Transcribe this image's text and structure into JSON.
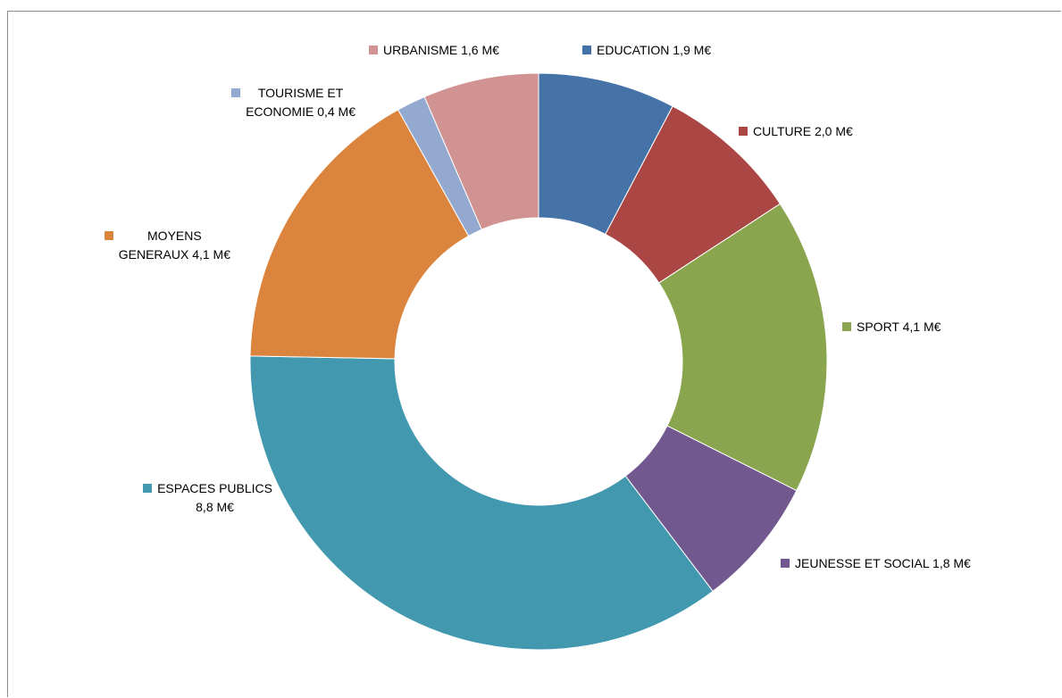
{
  "chart_data": {
    "type": "pie",
    "variant": "donut",
    "unit": "M€",
    "title": "",
    "legend": "labels next to slices",
    "slices": [
      {
        "label": "EDUCATION 1,9 M€",
        "value": 1.9,
        "color": "#4572a7"
      },
      {
        "label": "CULTURE 2,0 M€",
        "value": 2.0,
        "color": "#aa4643"
      },
      {
        "label": "SPORT 4,1 M€",
        "value": 4.1,
        "color": "#89a54e"
      },
      {
        "label": "JEUNESSE ET SOCIAL 1,8 M€",
        "value": 1.8,
        "color": "#71588f"
      },
      {
        "label": "ESPACES PUBLICS\n8,8 M€",
        "value": 8.8,
        "color": "#4198af"
      },
      {
        "label": "MOYENS\nGENERAUX 4,1 M€",
        "value": 4.1,
        "color": "#db843d"
      },
      {
        "label": "TOURISME ET\nECONOMIE 0,4 M€",
        "value": 0.4,
        "color": "#93a9cf"
      },
      {
        "label": "URBANISME 1,6 M€",
        "value": 1.6,
        "color": "#d19392"
      }
    ]
  }
}
